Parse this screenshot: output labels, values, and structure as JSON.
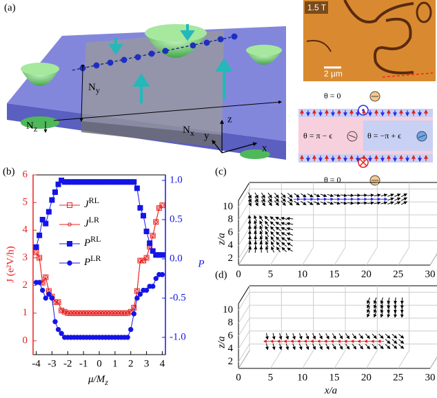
{
  "figure": {
    "panel_a": {
      "label": "(a)",
      "field": "1.5 T",
      "scale": "2 μm",
      "ny": {
        "main": "N",
        "sub": "y"
      },
      "nx": {
        "main": "N",
        "sub": "x"
      },
      "nz": {
        "main": "N",
        "sub": "z"
      },
      "axis_z": "z",
      "axis_y": "y",
      "axis_x": "x",
      "theta_top": "θ = 0",
      "theta_left": "θ = π − ϵ",
      "theta_right": "θ = −π + ϵ",
      "theta_bottom": "θ = 0"
    }
  },
  "chart_data": [
    {
      "type": "line",
      "panel_label": "(b)",
      "xlabel": {
        "main": "μ/M",
        "sub": "z"
      },
      "ylabel": "J (e²V/h)",
      "y2label": "P",
      "xlim": [
        -4.2,
        4.2
      ],
      "xticks": [
        -4,
        -3,
        -2,
        -1,
        0,
        1,
        2,
        3,
        4
      ],
      "ylim": [
        -0.5,
        6
      ],
      "yticks": [
        0,
        1,
        2,
        3,
        4,
        5,
        6
      ],
      "y2lim": [
        -1.22,
        1.07
      ],
      "y2ticks": [
        {
          "value": -1,
          "label": "-1.0"
        },
        {
          "value": -0.5,
          "label": "-0.5"
        },
        {
          "value": 0,
          "label": "0.0"
        },
        {
          "value": 0.5,
          "label": "0.5"
        },
        {
          "value": 1,
          "label": "1.0"
        }
      ],
      "x": [
        -4,
        -3.8,
        -3.6,
        -3.4,
        -3.2,
        -3,
        -2.8,
        -2.6,
        -2.4,
        -2.2,
        -2,
        -1.8,
        -1.6,
        -1.4,
        -1.2,
        -1,
        -0.8,
        -0.6,
        -0.4,
        -0.2,
        0,
        0.2,
        0.4,
        0.6,
        0.8,
        1,
        1.2,
        1.4,
        1.6,
        1.8,
        2,
        2.2,
        2.4,
        2.6,
        2.8,
        3,
        3.2,
        3.4,
        3.6,
        3.8,
        4
      ],
      "series": [
        {
          "name": "J",
          "name_sup": "RL",
          "color": "#e8201f",
          "marker": "square",
          "filled": false,
          "values": [
            3.2,
            3.0,
            2.1,
            2.3,
            1.8,
            1.6,
            1.4,
            1.4,
            1.1,
            1.05,
            1.0,
            1.0,
            1.0,
            1.0,
            1.0,
            1.0,
            1.0,
            1.0,
            1.0,
            1.0,
            1.0,
            1.0,
            1.0,
            1.0,
            1.0,
            1.0,
            1.0,
            1.0,
            1.0,
            1.0,
            1.05,
            1.2,
            1.8,
            2.9,
            2.9,
            3.0,
            3.4,
            3.8,
            4.3,
            4.8,
            4.9
          ]
        },
        {
          "name": "J",
          "name_sup": "LR",
          "color": "#e8201f",
          "marker": "circle",
          "filled": false,
          "values": [
            3.2,
            3.0,
            2.1,
            2.3,
            1.8,
            1.6,
            1.4,
            1.4,
            1.1,
            1.05,
            1.0,
            1.0,
            1.0,
            1.0,
            1.0,
            1.0,
            1.0,
            1.0,
            1.0,
            1.0,
            1.0,
            1.0,
            1.0,
            1.0,
            1.0,
            1.0,
            1.0,
            1.0,
            1.0,
            1.0,
            1.05,
            1.2,
            1.8,
            2.9,
            2.9,
            3.0,
            3.4,
            3.8,
            4.3,
            4.8,
            4.9
          ]
        },
        {
          "name": "P",
          "name_sup": "RL",
          "color": "#1414e6",
          "marker": "square",
          "filled": true,
          "axis": "y2",
          "values": [
            0.15,
            0.3,
            0.5,
            0.45,
            0.6,
            0.75,
            0.85,
            0.95,
            1.0,
            0.98,
            0.98,
            0.98,
            0.98,
            0.98,
            0.98,
            0.98,
            0.98,
            0.98,
            0.98,
            0.98,
            0.98,
            0.98,
            0.98,
            0.98,
            0.98,
            0.98,
            0.98,
            0.98,
            0.98,
            0.98,
            0.98,
            0.98,
            0.9,
            0.65,
            0.55,
            0.35,
            0.2,
            0.1,
            0.05,
            0.05,
            0.05
          ]
        },
        {
          "name": "P",
          "name_sup": "LR",
          "color": "#1414e6",
          "marker": "circle",
          "filled": true,
          "axis": "y2",
          "values": [
            -0.3,
            -0.3,
            -0.4,
            -0.5,
            -0.45,
            -0.5,
            -0.8,
            -0.9,
            -0.95,
            -1.0,
            -1.0,
            -1.0,
            -1.0,
            -1.0,
            -1.0,
            -1.0,
            -1.0,
            -1.0,
            -1.0,
            -1.0,
            -1.0,
            -1.0,
            -1.0,
            -1.0,
            -1.0,
            -1.0,
            -1.0,
            -1.0,
            -1.0,
            -1.0,
            -0.9,
            -0.7,
            -0.5,
            -0.45,
            -0.4,
            -0.4,
            -0.35,
            -0.35,
            -0.25,
            -0.2,
            -0.2
          ]
        }
      ]
    },
    {
      "type": "quiver3d",
      "panel_label": "(c)",
      "zlabel": "z/a",
      "xlim": [
        0,
        30
      ],
      "xticks": [
        0,
        5,
        10,
        15,
        20,
        25,
        30
      ],
      "zlim": [
        1,
        11
      ],
      "zticks": [
        2,
        4,
        6,
        8,
        10
      ]
    },
    {
      "type": "quiver3d",
      "panel_label": "(d)",
      "zlabel": "z/a",
      "xlabel": "x/a",
      "xlim": [
        0,
        30
      ],
      "xticks": [
        0,
        5,
        10,
        15,
        20,
        25,
        30
      ],
      "zlim": [
        1,
        11
      ],
      "zticks": [
        2,
        4,
        6,
        8,
        10
      ]
    }
  ]
}
